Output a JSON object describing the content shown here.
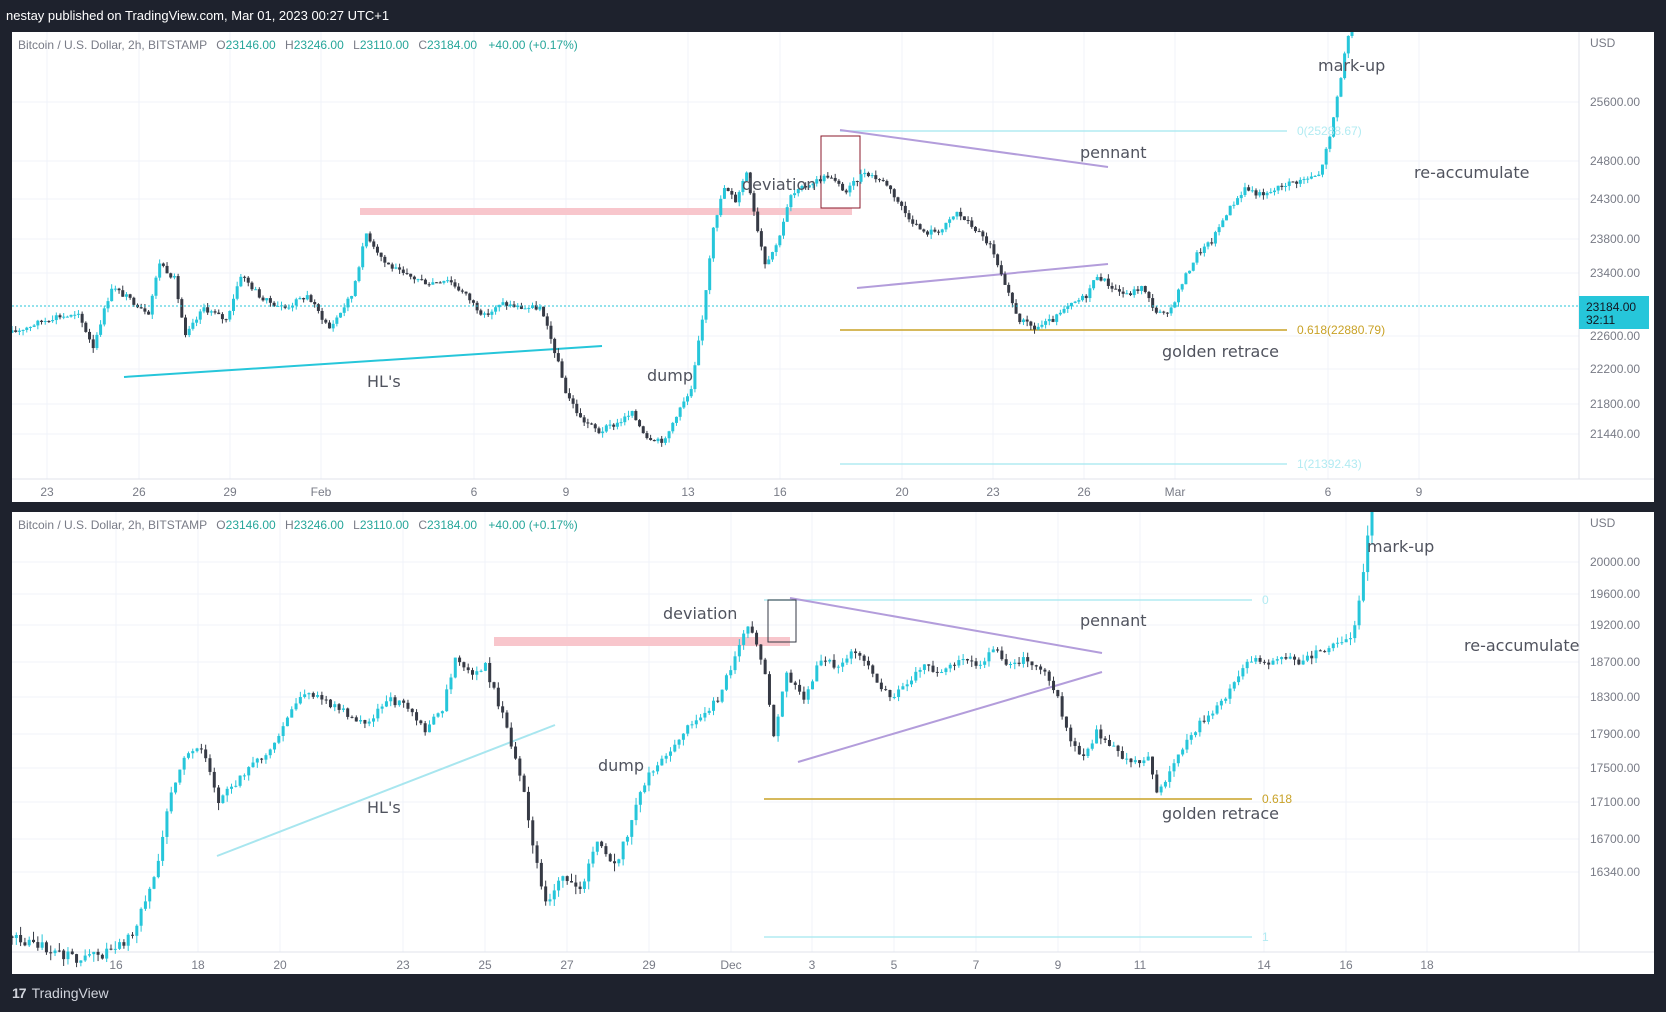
{
  "header": {
    "publisher_line": "nestay published on TradingView.com, Mar 01, 2023 00:27 UTC+1"
  },
  "footer": {
    "brand": "TradingView",
    "logo_glyph": "17"
  },
  "colors": {
    "up": "#26c6da",
    "down": "#363a45",
    "resistance_zone": "#f8c6cc",
    "trend_hl": "#26c6da",
    "trend_hl_light": "#a8e6ef",
    "pennant": "#b39ddb",
    "deviation_box": "#8b1a2b",
    "golden": "#c9a227",
    "fib_line": "#b2ebf2",
    "price_badge": "#26c6da"
  },
  "chart_data": [
    {
      "type": "candlestick",
      "id": "top",
      "legend": {
        "symbol": "Bitcoin / U.S. Dollar, 2h, BITSTAMP",
        "open_label": "O",
        "open": "23146.00",
        "high_label": "H",
        "high": "23246.00",
        "low_label": "L",
        "low": "23110.00",
        "close_label": "C",
        "close": "23184.00",
        "change": "+40.00 (+0.17%)"
      },
      "currency": "USD",
      "y_ticks": [
        "25600.00",
        "24800.00",
        "24300.00",
        "23800.00",
        "23400.00",
        "22600.00",
        "22200.00",
        "21800.00",
        "21440.00"
      ],
      "x_ticks": [
        "23",
        "26",
        "29",
        "Feb",
        "6",
        "9",
        "13",
        "16",
        "20",
        "23",
        "26",
        "Mar",
        "6",
        "9"
      ],
      "current_price": "23184.00",
      "countdown": "32:11",
      "fib": {
        "zero": "0(25288.67)",
        "golden": "0.618(22880.79)",
        "one": "1(21392.43)"
      },
      "annotations": [
        "deviation",
        "pennant",
        "mark-up",
        "re-accumulate",
        "HL's",
        "dump",
        "golden retrace"
      ],
      "path": [
        [
          0,
          22850
        ],
        [
          6,
          22950
        ],
        [
          12,
          23050
        ],
        [
          18,
          23050
        ],
        [
          22,
          22700
        ],
        [
          27,
          23400
        ],
        [
          32,
          23250
        ],
        [
          37,
          23100
        ],
        [
          40,
          23700
        ],
        [
          44,
          23500
        ],
        [
          47,
          22800
        ],
        [
          52,
          23150
        ],
        [
          58,
          23000
        ],
        [
          62,
          23550
        ],
        [
          68,
          23250
        ],
        [
          74,
          23150
        ],
        [
          80,
          23300
        ],
        [
          86,
          22900
        ],
        [
          92,
          23300
        ],
        [
          96,
          24050
        ],
        [
          101,
          23700
        ],
        [
          106,
          23550
        ],
        [
          113,
          23450
        ],
        [
          118,
          23500
        ],
        [
          123,
          23300
        ],
        [
          128,
          23050
        ],
        [
          133,
          23200
        ],
        [
          138,
          23150
        ],
        [
          143,
          23150
        ],
        [
          147,
          22650
        ],
        [
          150,
          22200
        ],
        [
          154,
          21900
        ],
        [
          159,
          21750
        ],
        [
          164,
          21850
        ],
        [
          168,
          21950
        ],
        [
          172,
          21700
        ],
        [
          177,
          21650
        ],
        [
          180,
          21950
        ],
        [
          184,
          22200
        ],
        [
          187,
          23000
        ],
        [
          190,
          24150
        ],
        [
          193,
          24600
        ],
        [
          196,
          24450
        ],
        [
          199,
          24800
        ],
        [
          202,
          24100
        ],
        [
          204,
          23700
        ],
        [
          207,
          23900
        ],
        [
          211,
          24500
        ],
        [
          216,
          24650
        ],
        [
          221,
          24750
        ],
        [
          226,
          24550
        ],
        [
          231,
          24800
        ],
        [
          237,
          24650
        ],
        [
          242,
          24300
        ],
        [
          247,
          24050
        ],
        [
          252,
          24100
        ],
        [
          256,
          24300
        ],
        [
          261,
          24100
        ],
        [
          265,
          23900
        ],
        [
          269,
          23400
        ],
        [
          273,
          23000
        ],
        [
          277,
          22900
        ],
        [
          282,
          23000
        ],
        [
          286,
          23150
        ],
        [
          291,
          23300
        ],
        [
          294,
          23550
        ],
        [
          298,
          23400
        ],
        [
          302,
          23300
        ],
        [
          306,
          23400
        ],
        [
          310,
          23100
        ],
        [
          313,
          23050
        ],
        [
          317,
          23450
        ],
        [
          321,
          23800
        ],
        [
          325,
          23950
        ],
        [
          329,
          24300
        ],
        [
          334,
          24600
        ],
        [
          339,
          24500
        ],
        [
          345,
          24650
        ],
        [
          350,
          24700
        ],
        [
          354,
          24750
        ],
        [
          357,
          25200
        ],
        [
          359,
          25700
        ],
        [
          361,
          26200
        ],
        [
          363,
          26600
        ]
      ]
    },
    {
      "type": "candlestick",
      "id": "bottom",
      "legend": {
        "symbol": "Bitcoin / U.S. Dollar, 2h, BITSTAMP",
        "open_label": "O",
        "open": "23146.00",
        "high_label": "H",
        "high": "23246.00",
        "low_label": "L",
        "low": "23110.00",
        "close_label": "C",
        "close": "23184.00",
        "change": "+40.00 (+0.17%)"
      },
      "currency": "USD",
      "y_ticks": [
        "20000.00",
        "19600.00",
        "19200.00",
        "18700.00",
        "18300.00",
        "17900.00",
        "17500.00",
        "17100.00",
        "16700.00",
        "16340.00"
      ],
      "x_ticks": [
        "16",
        "18",
        "20",
        "23",
        "25",
        "27",
        "29",
        "Dec",
        "3",
        "5",
        "7",
        "9",
        "11",
        "14",
        "16",
        "18"
      ],
      "fib": {
        "zero": "0",
        "golden": "0.618",
        "one": "1"
      },
      "annotations": [
        "deviation",
        "pennant",
        "mark-up",
        "re-accumulate",
        "HL's",
        "dump",
        "golden retrace"
      ],
      "path": [
        [
          0,
          16400
        ],
        [
          8,
          16300
        ],
        [
          15,
          16200
        ],
        [
          22,
          16250
        ],
        [
          28,
          16400
        ],
        [
          33,
          16900
        ],
        [
          37,
          17700
        ],
        [
          40,
          18100
        ],
        [
          44,
          18200
        ],
        [
          48,
          17600
        ],
        [
          52,
          17800
        ],
        [
          56,
          18000
        ],
        [
          60,
          18200
        ],
        [
          64,
          18600
        ],
        [
          68,
          18900
        ],
        [
          72,
          18800
        ],
        [
          76,
          18700
        ],
        [
          80,
          18500
        ],
        [
          84,
          18600
        ],
        [
          88,
          18800
        ],
        [
          92,
          18700
        ],
        [
          96,
          18400
        ],
        [
          100,
          18700
        ],
        [
          103,
          19300
        ],
        [
          107,
          19100
        ],
        [
          110,
          19200
        ],
        [
          114,
          18600
        ],
        [
          118,
          17900
        ],
        [
          121,
          17200
        ],
        [
          124,
          16700
        ],
        [
          128,
          16900
        ],
        [
          132,
          16800
        ],
        [
          136,
          17200
        ],
        [
          140,
          17000
        ],
        [
          144,
          17400
        ],
        [
          148,
          17900
        ],
        [
          152,
          18100
        ],
        [
          156,
          18400
        ],
        [
          160,
          18600
        ],
        [
          164,
          18800
        ],
        [
          168,
          19300
        ],
        [
          171,
          19700
        ],
        [
          173,
          19500
        ],
        [
          175,
          19100
        ],
        [
          177,
          18400
        ],
        [
          180,
          19100
        ],
        [
          184,
          18800
        ],
        [
          188,
          19300
        ],
        [
          192,
          19200
        ],
        [
          196,
          19400
        ],
        [
          200,
          19100
        ],
        [
          204,
          18800
        ],
        [
          208,
          19000
        ],
        [
          212,
          19200
        ],
        [
          216,
          19100
        ],
        [
          220,
          19300
        ],
        [
          224,
          19200
        ],
        [
          228,
          19400
        ],
        [
          232,
          19200
        ],
        [
          236,
          19300
        ],
        [
          240,
          19100
        ],
        [
          243,
          18800
        ],
        [
          246,
          18300
        ],
        [
          249,
          18100
        ],
        [
          252,
          18400
        ],
        [
          256,
          18200
        ],
        [
          260,
          18000
        ],
        [
          264,
          18100
        ],
        [
          266,
          17700
        ],
        [
          268,
          17800
        ],
        [
          272,
          18200
        ],
        [
          276,
          18500
        ],
        [
          280,
          18700
        ],
        [
          284,
          19000
        ],
        [
          288,
          19300
        ],
        [
          292,
          19200
        ],
        [
          296,
          19300
        ],
        [
          300,
          19250
        ],
        [
          304,
          19400
        ],
        [
          308,
          19450
        ],
        [
          311,
          19500
        ],
        [
          314,
          20200
        ],
        [
          316,
          20700
        ]
      ]
    }
  ]
}
